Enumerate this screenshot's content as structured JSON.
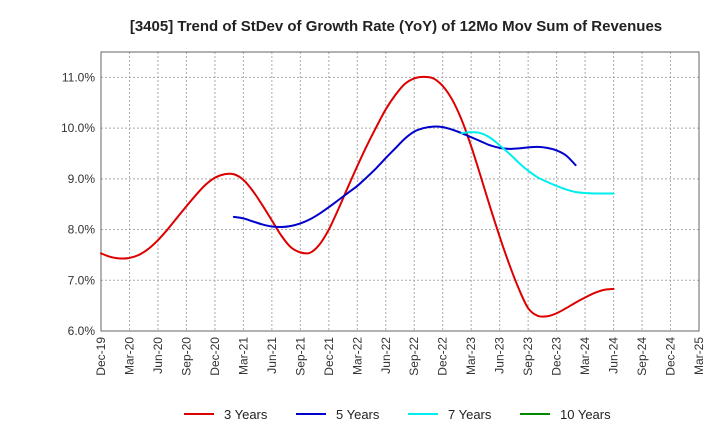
{
  "chart_data": {
    "type": "line",
    "title": "[3405]  Trend of StDev of Growth Rate (YoY) of 12Mo Mov Sum of Revenues",
    "xlabel": "",
    "ylabel": "",
    "ylim": [
      6.0,
      11.5
    ],
    "y_ticks": [
      6.0,
      7.0,
      8.0,
      9.0,
      10.0,
      11.0
    ],
    "y_tick_labels": [
      "6.0%",
      "7.0%",
      "8.0%",
      "9.0%",
      "10.0%",
      "11.0%"
    ],
    "x_range": [
      0,
      63
    ],
    "x_ticks": [
      0,
      3,
      6,
      9,
      12,
      15,
      18,
      21,
      24,
      27,
      30,
      33,
      36,
      39,
      42,
      45,
      48,
      51,
      54,
      57,
      60,
      63
    ],
    "x_tick_labels": [
      "Dec-19",
      "Mar-20",
      "Jun-20",
      "Sep-20",
      "Dec-20",
      "Mar-21",
      "Jun-21",
      "Sep-21",
      "Dec-21",
      "Mar-22",
      "Jun-22",
      "Sep-22",
      "Dec-22",
      "Mar-23",
      "Jun-23",
      "Sep-23",
      "Dec-23",
      "Mar-24",
      "Jun-24",
      "Sep-24",
      "Dec-24",
      "Mar-25"
    ],
    "grid": true,
    "legend_position": "bottom",
    "series": [
      {
        "name": "3 Years",
        "color": "#dd0000",
        "start_index": 0,
        "values": [
          7.53,
          7.46,
          7.43,
          7.44,
          7.5,
          7.62,
          7.79,
          8.0,
          8.23,
          8.46,
          8.68,
          8.88,
          9.02,
          9.09,
          9.09,
          8.98,
          8.76,
          8.48,
          8.18,
          7.88,
          7.65,
          7.55,
          7.54,
          7.7,
          8.0,
          8.4,
          8.83,
          9.25,
          9.65,
          10.02,
          10.37,
          10.65,
          10.87,
          10.98,
          11.01,
          10.98,
          10.83,
          10.56,
          10.16,
          9.64,
          9.05,
          8.44,
          7.86,
          7.32,
          6.84,
          6.45,
          6.3,
          6.29,
          6.35,
          6.45,
          6.56,
          6.66,
          6.75,
          6.81,
          6.83
        ]
      },
      {
        "name": "5 Years",
        "color": "#0000cc",
        "start_index": 14,
        "values": [
          8.25,
          8.22,
          8.16,
          8.1,
          8.06,
          8.05,
          8.07,
          8.12,
          8.2,
          8.31,
          8.44,
          8.58,
          8.72,
          8.86,
          9.03,
          9.21,
          9.41,
          9.6,
          9.79,
          9.93,
          10.0,
          10.03,
          10.02,
          9.97,
          9.9,
          9.82,
          9.74,
          9.66,
          9.61,
          9.59,
          9.6,
          9.62,
          9.63,
          9.61,
          9.56,
          9.46,
          9.27
        ]
      },
      {
        "name": "7 Years",
        "color": "#00eeee",
        "start_index": 38,
        "values": [
          9.9,
          9.92,
          9.9,
          9.81,
          9.66,
          9.5,
          9.32,
          9.16,
          9.03,
          8.94,
          8.86,
          8.79,
          8.74,
          8.72,
          8.71,
          8.71,
          8.71
        ]
      },
      {
        "name": "10 Years",
        "color": "#008800",
        "start_index": 0,
        "values": []
      }
    ]
  }
}
